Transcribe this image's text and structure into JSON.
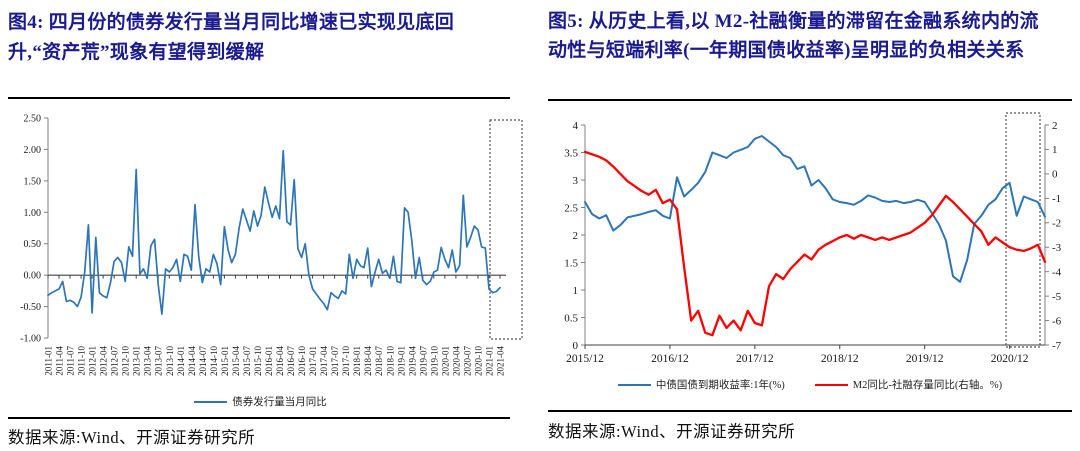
{
  "figure4": {
    "title": "图4: 四月份的债券发行量当月同比增速已实现见底回升,“资产荒”现象有望得到缓解",
    "source": "数据来源:Wind、开源证券研究所",
    "legend": [
      {
        "label": "债券发行量当月同比",
        "color": "#2e75b6"
      }
    ]
  },
  "figure5": {
    "title": "图5: 从历史上看,以 M2-社融衡量的滞留在金融系统内的流动性与短端利率(一年期国债收益率)呈明显的负相关关系",
    "source": "数据来源:Wind、开源证券研究所",
    "legend": [
      {
        "label": "中债国债到期收益率:1年(%)",
        "color": "#2e75b6"
      },
      {
        "label": "M2同比-社融存量同比(右轴。%)",
        "color": "#ff0000"
      }
    ]
  },
  "chart_data": [
    {
      "type": "line",
      "title": "债券发行量当月同比",
      "x_start": "2011-01",
      "x_end": "2021-04",
      "frequency": "monthly",
      "ylim": [
        -1.0,
        2.5
      ],
      "y_tick_labels": [
        "2.50",
        "2.00",
        "1.50",
        "1.00",
        "0.50",
        "0.00",
        "-0.50",
        "-1.00"
      ],
      "x_tick_labels": [
        "2011-01",
        "2011-04",
        "2011-07",
        "2011-10",
        "2012-01",
        "2012-04",
        "2012-07",
        "2012-10",
        "2013-01",
        "2013-04",
        "2013-07",
        "2013-10",
        "2014-01",
        "2014-04",
        "2014-07",
        "2014-10",
        "2015-01",
        "2015-04",
        "2015-07",
        "2015-10",
        "2016-01",
        "2016-04",
        "2016-07",
        "2016-10",
        "2017-01",
        "2017-04",
        "2017-07",
        "2017-10",
        "2018-01",
        "2018-04",
        "2018-07",
        "2018-10",
        "2019-01",
        "2019-04",
        "2019-07",
        "2019-10",
        "2020-01",
        "2020-04",
        "2020-07",
        "2020-10",
        "2021-01",
        "2021-04"
      ],
      "grid": false,
      "legend_position": "bottom",
      "highlight_box": {
        "style": "dashed",
        "x_from": "2020-12",
        "x_to": "2021-04"
      },
      "series": [
        {
          "name": "债券发行量当月同比",
          "color": "#2e75b6",
          "values": [
            -0.32,
            -0.28,
            -0.25,
            -0.22,
            -0.1,
            -0.42,
            -0.4,
            -0.43,
            -0.5,
            -0.35,
            0.05,
            0.8,
            -0.6,
            0.6,
            -0.28,
            -0.33,
            -0.36,
            -0.12,
            0.22,
            0.28,
            0.2,
            -0.1,
            0.45,
            0.3,
            1.68,
            0.02,
            0.1,
            -0.05,
            0.47,
            0.57,
            -0.15,
            -0.62,
            0.1,
            0.05,
            0.12,
            0.25,
            -0.1,
            0.33,
            0.3,
            0.08,
            1.12,
            0.3,
            -0.12,
            0.1,
            0.05,
            0.33,
            0.18,
            -0.15,
            0.77,
            0.4,
            0.2,
            0.33,
            0.75,
            1.05,
            0.88,
            0.7,
            1.02,
            0.78,
            0.95,
            1.4,
            1.15,
            0.92,
            1.1,
            0.9,
            1.98,
            0.85,
            0.8,
            1.52,
            0.42,
            0.28,
            0.5,
            0.0,
            -0.22,
            -0.3,
            -0.38,
            -0.45,
            -0.55,
            -0.28,
            -0.33,
            -0.37,
            -0.25,
            -0.3,
            0.33,
            -0.05,
            0.25,
            0.15,
            0.12,
            0.43,
            -0.18,
            0.05,
            0.25,
            0.03,
            0.08,
            -0.05,
            0.3,
            -0.1,
            -0.12,
            1.07,
            1.0,
            0.55,
            -0.05,
            0.28,
            -0.08,
            -0.15,
            -0.1,
            0.05,
            0.08,
            0.44,
            0.25,
            0.12,
            0.4,
            0.05,
            0.15,
            1.27,
            0.45,
            0.6,
            0.78,
            0.72,
            0.45,
            0.43,
            -0.22,
            -0.28,
            -0.26,
            -0.2
          ]
        }
      ]
    },
    {
      "type": "line",
      "x_start": "2015-12",
      "x_end": "2021-05",
      "frequency": "monthly",
      "left_ylim": [
        0,
        4
      ],
      "right_ylim": [
        -7,
        2
      ],
      "left_y_tick_labels": [
        "4",
        "3.5",
        "3",
        "2.5",
        "2",
        "1.5",
        "1",
        "0.5",
        "0"
      ],
      "right_y_tick_labels": [
        "2",
        "1",
        "0",
        "-1",
        "-2",
        "-3",
        "-4",
        "-5",
        "-6",
        "-7"
      ],
      "x_tick_labels": [
        "2015/12",
        "2016/12",
        "2017/12",
        "2018/12",
        "2019/12",
        "2020/12"
      ],
      "grid": false,
      "legend_position": "bottom",
      "highlight_box": {
        "style": "dashed",
        "x_from": "2020-12",
        "x_to": "2021-05"
      },
      "series": [
        {
          "name": "中债国债到期收益率:1年(%)",
          "axis": "left",
          "color": "#2e75b6",
          "values": [
            2.6,
            2.38,
            2.3,
            2.36,
            2.08,
            2.18,
            2.32,
            2.35,
            2.38,
            2.42,
            2.45,
            2.35,
            2.3,
            3.05,
            2.7,
            2.82,
            2.95,
            3.15,
            3.5,
            3.45,
            3.4,
            3.5,
            3.55,
            3.6,
            3.75,
            3.8,
            3.7,
            3.6,
            3.45,
            3.4,
            3.2,
            3.25,
            2.9,
            3.0,
            2.85,
            2.65,
            2.6,
            2.58,
            2.55,
            2.62,
            2.72,
            2.68,
            2.62,
            2.6,
            2.62,
            2.58,
            2.6,
            2.64,
            2.6,
            2.4,
            2.2,
            1.9,
            1.25,
            1.15,
            1.55,
            2.2,
            2.35,
            2.55,
            2.65,
            2.85,
            2.95,
            2.35,
            2.7,
            2.65,
            2.6,
            2.33
          ]
        },
        {
          "name": "M2同比-社融存量同比(右轴。%)",
          "axis": "right",
          "color": "#ff0000",
          "values": [
            0.9,
            0.8,
            0.7,
            0.55,
            0.3,
            0.0,
            -0.3,
            -0.5,
            -0.7,
            -0.85,
            -0.65,
            -1.2,
            -1.05,
            -1.45,
            -3.8,
            -6.0,
            -5.6,
            -6.5,
            -6.6,
            -5.8,
            -6.3,
            -6.0,
            -6.4,
            -5.6,
            -6.1,
            -6.2,
            -4.6,
            -4.1,
            -4.3,
            -3.9,
            -3.6,
            -3.3,
            -3.5,
            -3.1,
            -2.9,
            -2.75,
            -2.6,
            -2.5,
            -2.65,
            -2.5,
            -2.6,
            -2.7,
            -2.6,
            -2.7,
            -2.6,
            -2.5,
            -2.4,
            -2.2,
            -2.0,
            -1.7,
            -1.3,
            -0.9,
            -1.15,
            -1.45,
            -1.75,
            -2.05,
            -2.35,
            -2.9,
            -2.6,
            -2.8,
            -3.0,
            -3.1,
            -3.15,
            -3.05,
            -2.9,
            -3.6
          ]
        }
      ]
    }
  ]
}
